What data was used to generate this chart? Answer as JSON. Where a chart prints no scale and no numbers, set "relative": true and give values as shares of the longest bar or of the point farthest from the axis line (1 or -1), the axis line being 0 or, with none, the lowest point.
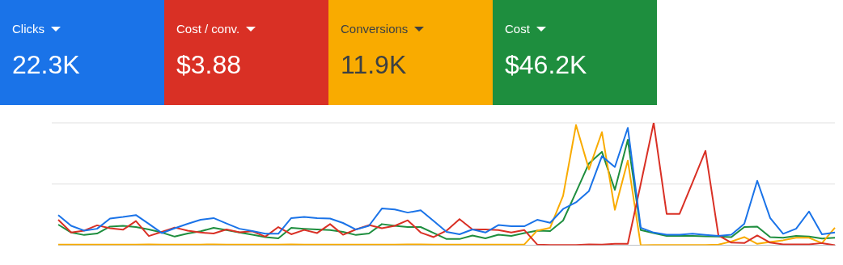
{
  "chart_data": [
    {
      "type": "other",
      "categories": [
        "Clicks",
        "Cost / conv.",
        "Conversions",
        "Cost"
      ],
      "value_labels": [
        "22.3K",
        "$3.88",
        "11.9K",
        "$46.2K"
      ],
      "colors": [
        "#1a73e8",
        "#d93025",
        "#f9ab00",
        "#1e8e3e"
      ]
    },
    {
      "type": "line",
      "relative": true,
      "legend": false,
      "ref_lines": [
        {
          "axis": "y",
          "value": 0.5,
          "color": "#e0e0e0"
        },
        {
          "axis": "y",
          "value": 1,
          "color": "#e0e0e0"
        }
      ],
      "marker": "none",
      "line_style": "solid",
      "categories": [
        null,
        null,
        null,
        null,
        null,
        null,
        null,
        null,
        null,
        null,
        null,
        null,
        null,
        null,
        null,
        null,
        null,
        null,
        null,
        null,
        null,
        null,
        null,
        null,
        null,
        null,
        null,
        null,
        null,
        null,
        null,
        null,
        null,
        null,
        null,
        null,
        null,
        null,
        null,
        null,
        null,
        null,
        null,
        null,
        null,
        null,
        null,
        null,
        null,
        null,
        null,
        null,
        null,
        null,
        null,
        null,
        null,
        null,
        null,
        null,
        null
      ],
      "series": [
        {
          "color": "#1a73e8",
          "values": [
            0.247,
            0.159,
            0.12,
            0.135,
            0.218,
            0.231,
            0.247,
            0.175,
            0.1,
            0.139,
            0.175,
            0.208,
            0.222,
            0.178,
            0.135,
            0.116,
            0.094,
            0.094,
            0.222,
            0.231,
            0.222,
            0.218,
            0.182,
            0.129,
            0.159,
            0.3,
            0.292,
            0.267,
            0.286,
            0.198,
            0.11,
            0.09,
            0.129,
            0.104,
            0.165,
            0.155,
            0.155,
            0.208,
            0.184,
            0.296,
            0.351,
            0.443,
            0.727,
            0.639,
            0.959,
            0.143,
            0.104,
            0.086,
            0.086,
            0.094,
            0.084,
            0.076,
            0.086,
            0.175,
            0.527,
            0.222,
            0.094,
            0.135,
            0.276,
            0.09,
            0.104
          ]
        },
        {
          "color": "#d93025",
          "values": [
            0.208,
            0.104,
            0.12,
            0.163,
            0.139,
            0.127,
            0.198,
            0.076,
            0.11,
            0.145,
            0.12,
            0.104,
            0.096,
            0.129,
            0.106,
            0.114,
            0.071,
            0.149,
            0.09,
            0.125,
            0.1,
            0.173,
            0.086,
            0.129,
            0.165,
            0.139,
            0.159,
            0.204,
            0.104,
            0.067,
            0.12,
            0.214,
            0.129,
            0.129,
            0.125,
            0.104,
            0.125,
            0.006,
            0.002,
            0.002,
            0.002,
            0.008,
            0.006,
            0.012,
            0.012,
            0.5,
            1,
            0.257,
            0.257,
            0.512,
            0.771,
            0.08,
            0.022,
            0.018,
            0.08,
            0.022,
            0.008,
            0.008,
            0.008,
            0.018,
            0
          ]
        },
        {
          "color": "#f9ab00",
          "values": [
            0.006,
            0.006,
            0.006,
            0.006,
            0.006,
            0.006,
            0.006,
            0.008,
            0.006,
            0.006,
            0.006,
            0.006,
            0.008,
            0.006,
            0.006,
            0.006,
            0.006,
            0.006,
            0.008,
            0.006,
            0.006,
            0.006,
            0.006,
            0.006,
            0.006,
            0.006,
            0.006,
            0.008,
            0.008,
            0.006,
            0.006,
            0.006,
            0.006,
            0.006,
            0.006,
            0.006,
            0.006,
            0.12,
            0.143,
            0.404,
            0.982,
            0.62,
            0.924,
            0.29,
            0.692,
            0,
            0.002,
            0.002,
            0.002,
            0.002,
            0.002,
            0.006,
            0.031,
            0.067,
            0.012,
            0.027,
            0.041,
            0.061,
            0.061,
            0.018,
            0.143
          ]
        },
        {
          "color": "#1e8e3e",
          "values": [
            0.169,
            0.104,
            0.084,
            0.096,
            0.153,
            0.159,
            0.149,
            0.129,
            0.104,
            0.071,
            0.096,
            0.114,
            0.143,
            0.125,
            0.104,
            0.086,
            0.067,
            0.057,
            0.143,
            0.135,
            0.129,
            0.125,
            0.11,
            0.084,
            0.096,
            0.173,
            0.159,
            0.149,
            0.149,
            0.1,
            0.051,
            0.051,
            0.08,
            0.057,
            0.086,
            0.076,
            0.1,
            0.12,
            0.116,
            0.202,
            0.433,
            0.669,
            0.763,
            0.453,
            0.861,
            0.124,
            0.1,
            0.076,
            0.076,
            0.076,
            0.074,
            0.071,
            0.067,
            0.149,
            0.153,
            0.067,
            0.061,
            0.076,
            0.071,
            0.055,
            0.061
          ]
        }
      ]
    }
  ]
}
